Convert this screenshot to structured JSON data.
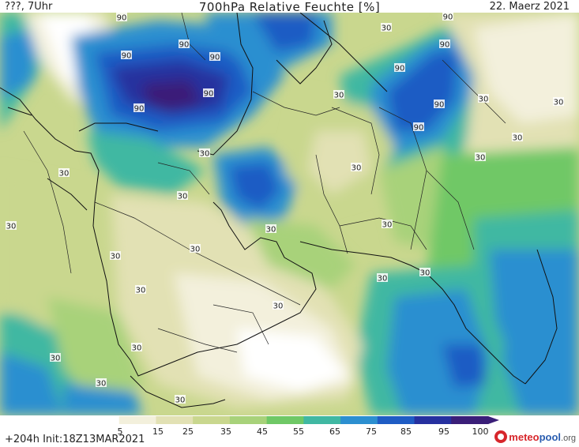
{
  "header": {
    "left": "???, 7Uhr",
    "title": "700hPa Relative Feuchte [%]",
    "date": "22. Maerz 2021"
  },
  "colorbar": {
    "ticks": [
      "5",
      "15",
      "25",
      "35",
      "45",
      "55",
      "65",
      "75",
      "85",
      "95",
      "100"
    ],
    "colors": [
      "#ffffff",
      "#f3f0dc",
      "#e2e1b4",
      "#c9d78e",
      "#a8d27a",
      "#6fc866",
      "#40b8a2",
      "#2c8fd0",
      "#1f5cc4",
      "#26309f",
      "#3a1e78"
    ]
  },
  "footer": {
    "run": "+204h  Init:18Z13MAR2021",
    "logo_main": "meteo",
    "logo_sub": "pool",
    "logo_tld": ".org"
  },
  "map": {
    "contour_labels": [
      "90",
      "90",
      "90",
      "90",
      "90",
      "90",
      "90",
      "90",
      "90",
      "90",
      "90",
      "30",
      "30",
      "30",
      "30",
      "30",
      "30",
      "30",
      "30",
      "30",
      "30",
      "30",
      "30",
      "30",
      "30",
      "30",
      "30",
      "30",
      "30",
      "30",
      "30",
      "30",
      "30",
      "30"
    ]
  }
}
